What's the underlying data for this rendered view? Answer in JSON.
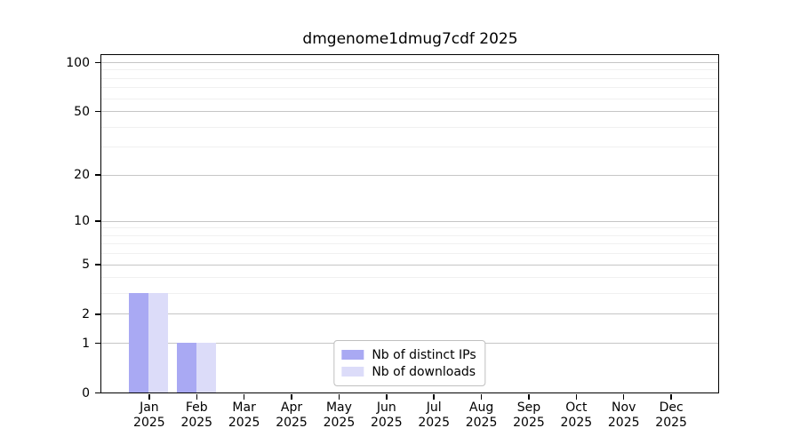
{
  "chart_data": {
    "type": "bar",
    "title": "dmgenome1dmug7cdf 2025",
    "year": "2025",
    "categories": [
      "Jan",
      "Feb",
      "Mar",
      "Apr",
      "May",
      "Jun",
      "Jul",
      "Aug",
      "Sep",
      "Oct",
      "Nov",
      "Dec"
    ],
    "series": [
      {
        "name": "Nb of distinct IPs",
        "color": "#a9a9f3",
        "values": [
          3,
          1,
          0,
          0,
          0,
          0,
          0,
          0,
          0,
          0,
          0,
          0
        ]
      },
      {
        "name": "Nb of downloads",
        "color": "#dcdcf9",
        "values": [
          3,
          1,
          0,
          0,
          0,
          0,
          0,
          0,
          0,
          0,
          0,
          0
        ]
      }
    ],
    "yscale": "log1p",
    "ylim": [
      0,
      112
    ],
    "yticks": [
      100,
      50,
      20,
      10,
      5,
      2,
      1,
      0
    ],
    "minor_yticks": [
      3,
      4,
      6,
      7,
      8,
      9,
      30,
      40,
      60,
      70,
      80,
      90
    ],
    "grid": true,
    "legend": {
      "position": "lower center"
    },
    "colors": {
      "axis": "#000000",
      "major_grid": "#c6c6c6",
      "minor_grid": "#f0f0f0",
      "text": "#000000",
      "background": "#ffffff"
    }
  }
}
